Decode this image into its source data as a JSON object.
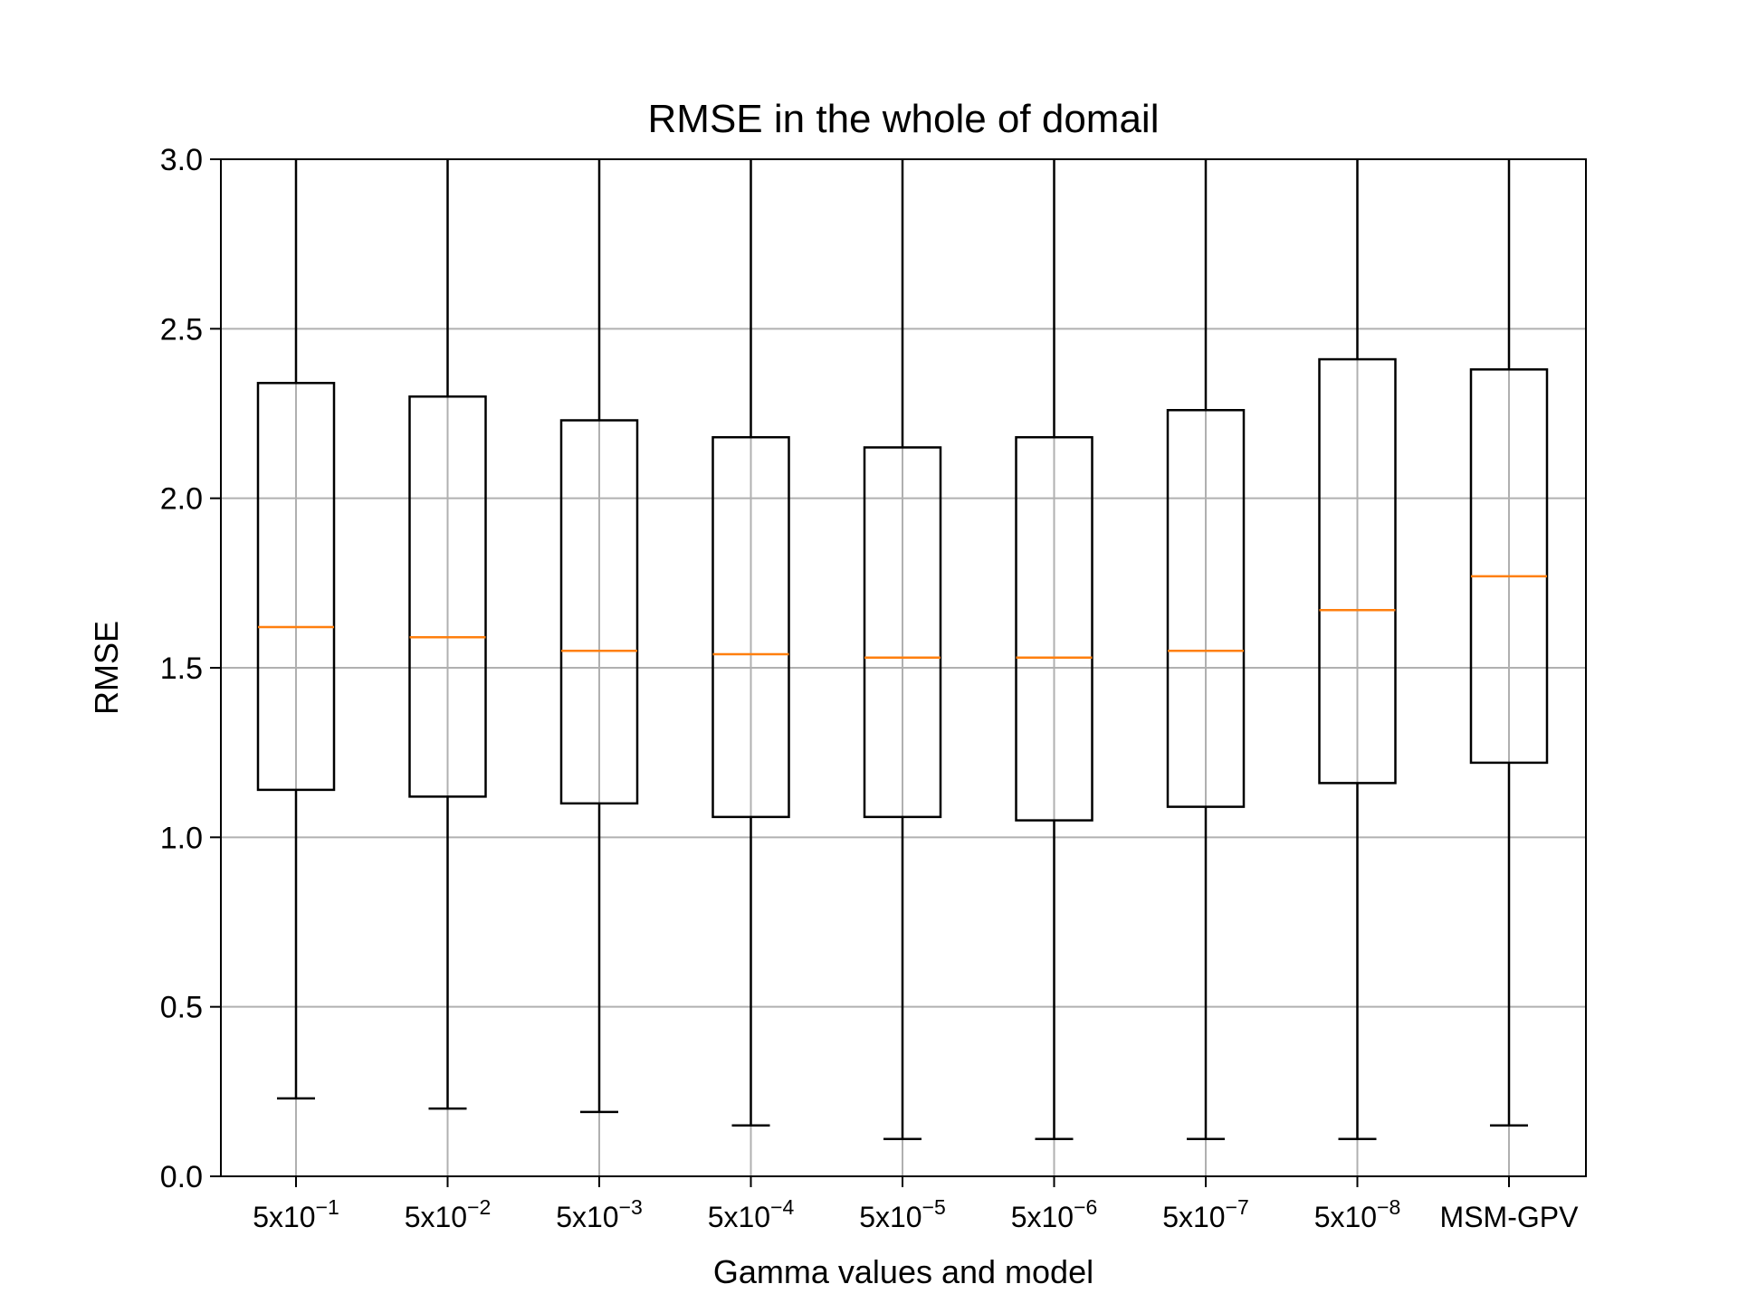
{
  "chart_data": {
    "type": "boxplot",
    "title": "RMSE in the whole of domail",
    "xlabel": "Gamma values and model",
    "ylabel": "RMSE",
    "ylim": [
      0.0,
      3.0
    ],
    "yticks": [
      "0.0",
      "0.5",
      "1.0",
      "1.5",
      "2.0",
      "2.5",
      "3.0"
    ],
    "grid": true,
    "categories": [
      {
        "base": "5x10",
        "exp": "−1"
      },
      {
        "base": "5x10",
        "exp": "−2"
      },
      {
        "base": "5x10",
        "exp": "−3"
      },
      {
        "base": "5x10",
        "exp": "−4"
      },
      {
        "base": "5x10",
        "exp": "−5"
      },
      {
        "base": "5x10",
        "exp": "−6"
      },
      {
        "base": "5x10",
        "exp": "−7"
      },
      {
        "base": "5x10",
        "exp": "−8"
      },
      {
        "base": "MSM-GPV",
        "exp": ""
      }
    ],
    "boxes": [
      {
        "whislo": 0.23,
        "q1": 1.14,
        "med": 1.62,
        "q3": 2.34,
        "whishi": 3.0
      },
      {
        "whislo": 0.2,
        "q1": 1.12,
        "med": 1.59,
        "q3": 2.3,
        "whishi": 3.0
      },
      {
        "whislo": 0.19,
        "q1": 1.1,
        "med": 1.55,
        "q3": 2.23,
        "whishi": 3.0
      },
      {
        "whislo": 0.15,
        "q1": 1.06,
        "med": 1.54,
        "q3": 2.18,
        "whishi": 3.0
      },
      {
        "whislo": 0.11,
        "q1": 1.06,
        "med": 1.53,
        "q3": 2.15,
        "whishi": 3.0
      },
      {
        "whislo": 0.11,
        "q1": 1.05,
        "med": 1.53,
        "q3": 2.18,
        "whishi": 3.0
      },
      {
        "whislo": 0.11,
        "q1": 1.09,
        "med": 1.55,
        "q3": 2.26,
        "whishi": 3.0
      },
      {
        "whislo": 0.11,
        "q1": 1.16,
        "med": 1.67,
        "q3": 2.41,
        "whishi": 3.0
      },
      {
        "whislo": 0.15,
        "q1": 1.22,
        "med": 1.77,
        "q3": 2.38,
        "whishi": 3.0
      }
    ],
    "colors": {
      "box": "#000000",
      "median": "#ff7f0e",
      "grid": "#b0b0b0"
    }
  }
}
